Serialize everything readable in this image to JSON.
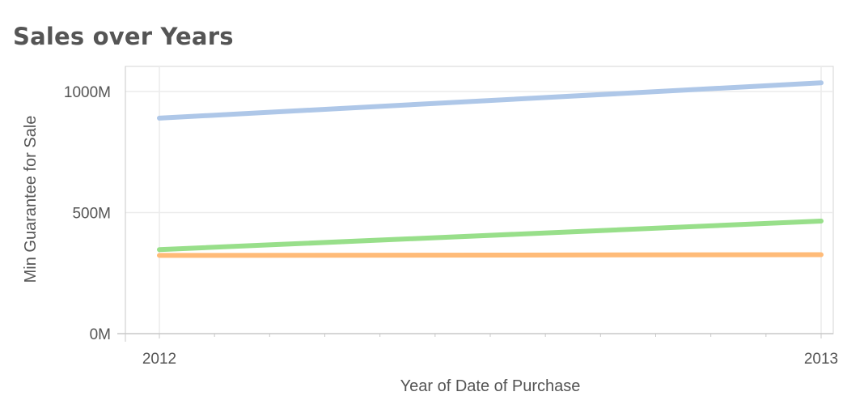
{
  "chart_data": {
    "type": "line",
    "title": "Sales over Years",
    "xlabel": "Year of Date of Purchase",
    "ylabel": "Min Guarantee for Sale",
    "x": [
      "2012",
      "2013"
    ],
    "y_ticks": [
      "0M",
      "500M",
      "1000M"
    ],
    "ylim": [
      0,
      1000
    ],
    "grid": true,
    "series": [
      {
        "values": [
          890,
          1036
        ],
        "color": "#aec7e8"
      },
      {
        "values": [
          347,
          465
        ],
        "color": "#98df8a"
      },
      {
        "values": [
          323,
          326
        ],
        "color": "#ffbb78"
      }
    ]
  }
}
